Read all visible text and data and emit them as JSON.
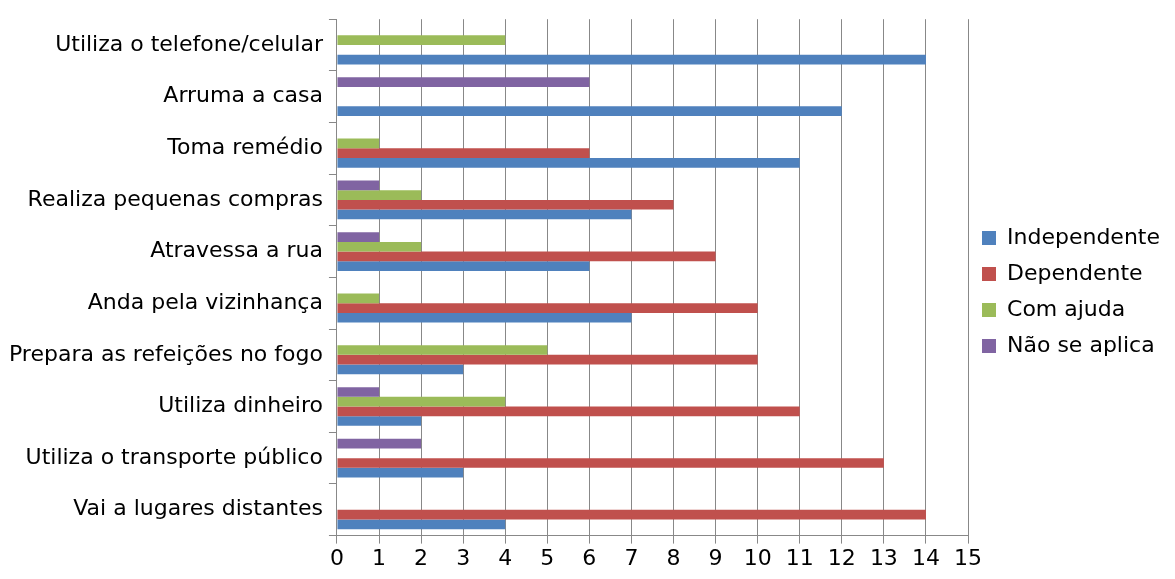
{
  "chart_data": {
    "type": "bar",
    "orientation": "horizontal",
    "categories": [
      "Utiliza o telefone/celular",
      "Arruma a casa",
      "Toma remédio",
      "Realiza pequenas compras",
      "Atravessa a rua",
      "Anda pela vizinhança",
      "Prepara as refeições no fogo",
      "Utiliza dinheiro",
      "Utiliza o transporte público",
      "Vai a lugares distantes"
    ],
    "series": [
      {
        "name": "Independente",
        "color": "#4f81bd",
        "values": [
          14,
          12,
          11,
          7,
          6,
          7,
          3,
          2,
          3,
          4
        ]
      },
      {
        "name": "Dependente",
        "color": "#c0504d",
        "values": [
          0,
          0,
          6,
          8,
          9,
          10,
          10,
          11,
          13,
          14
        ]
      },
      {
        "name": "Com ajuda",
        "color": "#9bbb59",
        "values": [
          4,
          0,
          1,
          2,
          2,
          1,
          5,
          4,
          0,
          0
        ]
      },
      {
        "name": "Não se aplica",
        "color": "#8064a2",
        "values": [
          0,
          6,
          0,
          1,
          1,
          0,
          0,
          1,
          2,
          0
        ]
      }
    ],
    "xlim": [
      0,
      15
    ],
    "xticks": [
      0,
      1,
      2,
      3,
      4,
      5,
      6,
      7,
      8,
      9,
      10,
      11,
      12,
      13,
      14,
      15
    ],
    "grid": "x",
    "legend": "right"
  }
}
